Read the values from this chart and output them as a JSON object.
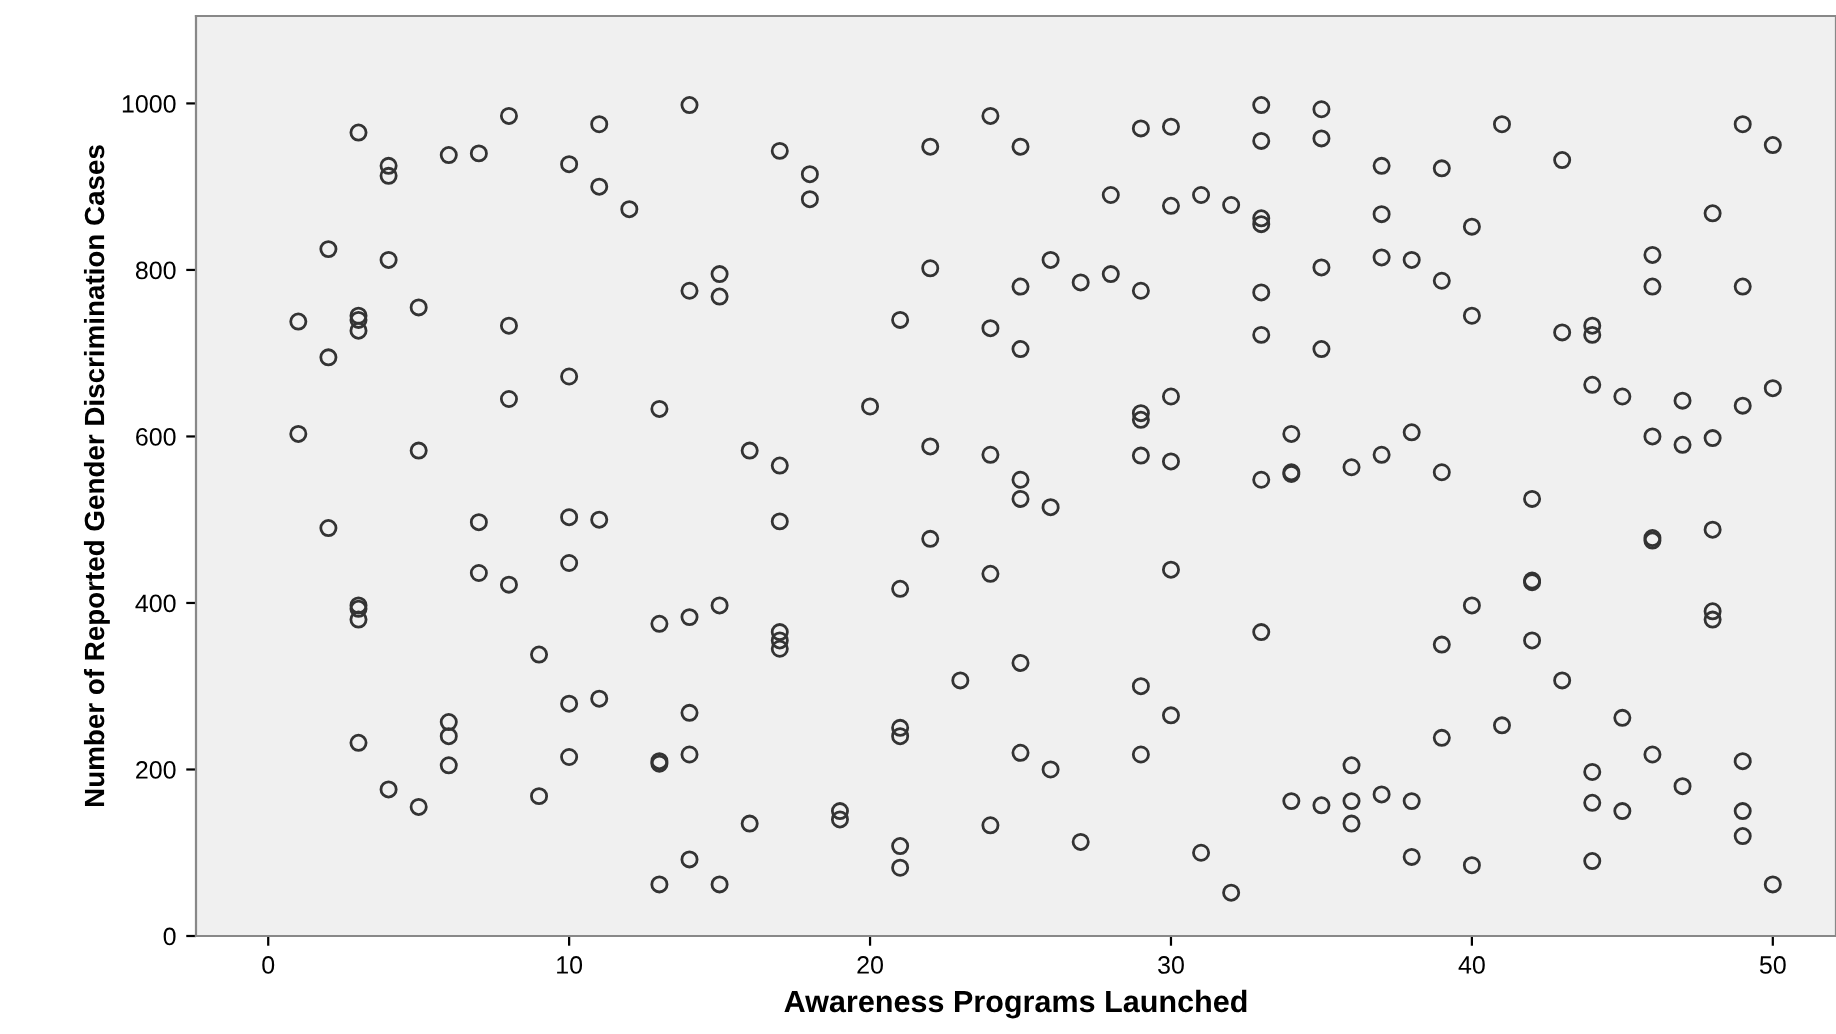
{
  "chart_data": {
    "type": "scatter",
    "xlabel": "Awareness Programs Launched",
    "ylabel": "Number of Reported Gender Discrimination Cases",
    "xlim": [
      -2.4,
      52.1
    ],
    "ylim": [
      0,
      1105
    ],
    "xticks": [
      0,
      10,
      20,
      30,
      40,
      50
    ],
    "yticks": [
      0,
      200,
      400,
      600,
      800,
      1000
    ],
    "grid": false,
    "legend": false,
    "marker": "circle",
    "series": [
      {
        "color": "#333333",
        "x": [
          1,
          1,
          2,
          2,
          2,
          3,
          3,
          3,
          3,
          3,
          3,
          3,
          3,
          4,
          4,
          4,
          4,
          5,
          5,
          5,
          6,
          6,
          6,
          6,
          7,
          7,
          7,
          8,
          8,
          8,
          8,
          9,
          9,
          10,
          10,
          10,
          10,
          10,
          10,
          11,
          11,
          11,
          11,
          12,
          13,
          13,
          13,
          13,
          13,
          14,
          14,
          14,
          14,
          14,
          14,
          15,
          15,
          15,
          15,
          16,
          16,
          17,
          17,
          17,
          17,
          17,
          17,
          18,
          18,
          19,
          19,
          20,
          21,
          21,
          21,
          21,
          21,
          21,
          22,
          22,
          22,
          22,
          23,
          24,
          24,
          24,
          24,
          24,
          25,
          25,
          25,
          25,
          25,
          25,
          25,
          26,
          26,
          26,
          27,
          27,
          28,
          28,
          29,
          29,
          29,
          29,
          29,
          29,
          29,
          30,
          30,
          30,
          30,
          30,
          30,
          31,
          31,
          32,
          32,
          33,
          33,
          33,
          33,
          33,
          33,
          33,
          33,
          34,
          34,
          34,
          34,
          35,
          35,
          35,
          35,
          35,
          36,
          36,
          36,
          36,
          37,
          37,
          37,
          37,
          37,
          38,
          38,
          38,
          38,
          39,
          39,
          39,
          39,
          39,
          40,
          40,
          40,
          40,
          41,
          41,
          42,
          42,
          42,
          42,
          43,
          43,
          43,
          44,
          44,
          44,
          44,
          44,
          44,
          45,
          45,
          45,
          46,
          46,
          46,
          46,
          46,
          46,
          47,
          47,
          47,
          48,
          48,
          48,
          48,
          48,
          49,
          49,
          49,
          49,
          49,
          49,
          50,
          50,
          50
        ],
        "values": [
          738,
          603,
          825,
          695,
          490,
          965,
          745,
          740,
          727,
          397,
          393,
          380,
          232,
          925,
          913,
          812,
          176,
          755,
          583,
          155,
          938,
          257,
          240,
          205,
          940,
          497,
          436,
          985,
          733,
          645,
          422,
          338,
          168,
          927,
          672,
          503,
          448,
          279,
          215,
          975,
          900,
          500,
          285,
          873,
          633,
          375,
          210,
          207,
          62,
          998,
          775,
          383,
          268,
          218,
          92,
          795,
          768,
          397,
          62,
          583,
          135,
          943,
          565,
          498,
          365,
          355,
          345,
          915,
          885,
          150,
          140,
          636,
          740,
          417,
          250,
          240,
          108,
          82,
          948,
          802,
          588,
          477,
          307,
          985,
          730,
          578,
          435,
          133,
          948,
          780,
          705,
          548,
          525,
          328,
          220,
          812,
          515,
          200,
          785,
          113,
          890,
          795,
          970,
          775,
          628,
          620,
          577,
          300,
          218,
          972,
          877,
          648,
          570,
          440,
          265,
          890,
          100,
          878,
          52,
          998,
          955,
          862,
          855,
          773,
          722,
          548,
          365,
          603,
          557,
          555,
          162,
          993,
          958,
          803,
          705,
          157,
          563,
          205,
          162,
          135,
          925,
          867,
          815,
          578,
          170,
          812,
          605,
          162,
          95,
          922,
          787,
          557,
          350,
          238,
          852,
          745,
          397,
          85,
          975,
          253,
          525,
          427,
          425,
          355,
          932,
          725,
          307,
          733,
          722,
          662,
          197,
          160,
          90,
          648,
          262,
          150,
          818,
          780,
          600,
          478,
          475,
          218,
          643,
          590,
          180,
          868,
          598,
          488,
          390,
          380,
          975,
          780,
          637,
          210,
          150,
          120,
          950,
          658,
          62
        ]
      }
    ]
  }
}
